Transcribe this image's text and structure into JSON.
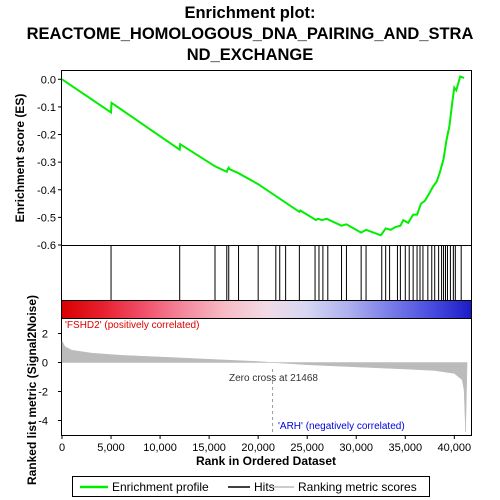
{
  "title_lines": [
    "Enrichment plot:",
    "REACTOME_HOMOLOGOUS_DNA_PAIRING_AND_STRA",
    "ND_EXCHANGE"
  ],
  "ylabel_top": "Enrichment score (ES)",
  "ylabel_bottom": "Ranked list metric (Signal2Noise)",
  "xlabel": "Rank in Ordered Dataset",
  "annotations": {
    "positive": "'FSHD2' (positively correlated)",
    "negative": "'ARH' (negatively correlated)",
    "zero_cross": "Zero cross at 21468"
  },
  "legend": {
    "items": [
      {
        "label": "Enrichment profile",
        "color": "#00ee00"
      },
      {
        "label": "Hits",
        "color": "#000000"
      },
      {
        "label": "Ranking metric scores",
        "color": "#bbbbbb"
      }
    ]
  },
  "colors": {
    "es_line": "#00ee00",
    "hits": "#000000",
    "metric_fill": "#bbbbbb",
    "positive_text": "#dd0000",
    "negative_text": "#0000dd",
    "zero_dash": "#999999"
  },
  "chart_data": {
    "type": "line",
    "x_range": [
      0,
      41700
    ],
    "x_ticks": [
      0,
      5000,
      10000,
      15000,
      20000,
      25000,
      30000,
      35000,
      40000
    ],
    "x_tick_labels": [
      "0",
      "5,000",
      "10,000",
      "15,000",
      "20,000",
      "25,000",
      "30,000",
      "35,000",
      "40,000"
    ],
    "es_ylim": [
      -0.6,
      0.03
    ],
    "es_ticks": [
      0.0,
      -0.1,
      -0.2,
      -0.3,
      -0.4,
      -0.5,
      -0.6
    ],
    "es_tick_labels": [
      "0.0",
      "-0.1",
      "-0.2",
      "-0.3",
      "-0.4",
      "-0.5",
      "-0.6"
    ],
    "metric_ylim": [
      -5,
      3
    ],
    "metric_ticks": [
      2,
      0,
      -2,
      -4
    ],
    "metric_tick_labels": [
      "2",
      "0",
      "-2",
      "-4"
    ],
    "zero_cross": 21468,
    "enrichment_profile": {
      "x": [
        0,
        5000,
        5050,
        12000,
        12050,
        15600,
        16800,
        16900,
        17000,
        17050,
        18000,
        20000,
        24200,
        24300,
        25900,
        26100,
        26500,
        27000,
        28500,
        29000,
        30500,
        31000,
        32500,
        33000,
        33500,
        34000,
        34500,
        34800,
        35300,
        35800,
        36200,
        36600,
        37000,
        37500,
        37800,
        38200,
        38500,
        38900,
        39200,
        39500,
        39800,
        40000,
        40200,
        40600,
        41000
      ],
      "y": [
        0.0,
        -0.12,
        -0.085,
        -0.255,
        -0.235,
        -0.315,
        -0.335,
        -0.325,
        -0.32,
        -0.325,
        -0.34,
        -0.38,
        -0.48,
        -0.475,
        -0.51,
        -0.505,
        -0.51,
        -0.505,
        -0.53,
        -0.525,
        -0.555,
        -0.545,
        -0.565,
        -0.54,
        -0.545,
        -0.535,
        -0.53,
        -0.51,
        -0.52,
        -0.49,
        -0.49,
        -0.45,
        -0.44,
        -0.41,
        -0.39,
        -0.37,
        -0.34,
        -0.29,
        -0.22,
        -0.17,
        -0.08,
        -0.03,
        -0.04,
        0.01,
        0.005
      ]
    },
    "hits_x": [
      5000,
      12000,
      15600,
      16800,
      17000,
      18000,
      20000,
      21800,
      22200,
      22800,
      24200,
      25800,
      26200,
      26600,
      27100,
      28500,
      29000,
      30500,
      31000,
      32600,
      33000,
      33400,
      34200,
      34500,
      35000,
      35400,
      35800,
      36200,
      36500,
      36800,
      37300,
      37700,
      38000,
      38400,
      38700,
      38900,
      39100,
      39300,
      39600,
      39900,
      40100,
      40700
    ],
    "metric_scores": {
      "x": [
        0,
        300,
        1000,
        3000,
        6000,
        10000,
        15000,
        20000,
        21468,
        25000,
        30000,
        35000,
        38000,
        40000,
        40800,
        41000,
        41150,
        41300
      ],
      "y": [
        1.5,
        1.1,
        0.85,
        0.65,
        0.5,
        0.38,
        0.22,
        0.07,
        0.0,
        -0.15,
        -0.3,
        -0.45,
        -0.55,
        -0.75,
        -1.2,
        -1.9,
        -4.8,
        0.0
      ]
    },
    "gradient_colors": [
      "#d90000",
      "#e8202e",
      "#f0506a",
      "#f48a9e",
      "#f7bcc6",
      "#f2dbe6",
      "#d6d6f2",
      "#aeb0f0",
      "#7a7ee8",
      "#4a4ee0",
      "#1c1cc8"
    ]
  }
}
